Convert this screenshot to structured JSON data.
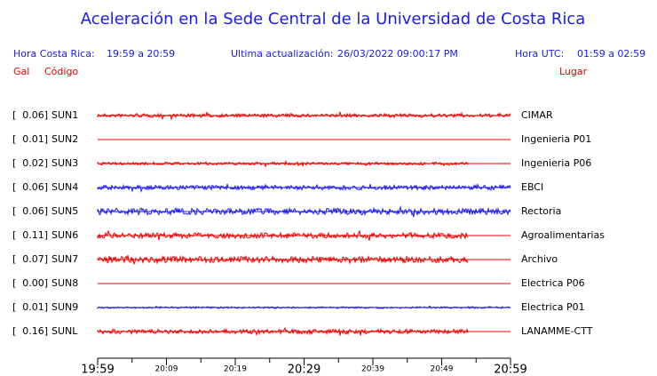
{
  "header": {
    "title": "Aceleración en la Sede Central de la Universidad de Costa Rica",
    "local_label": "Hora Costa Rica:",
    "local_range": "19:59 a 20:59",
    "update_label": "Ultima actualización:",
    "update_value": "26/03/2022 09:00:17 PM",
    "utc_label": "Hora UTC:",
    "utc_range": "01:59 a 02:59"
  },
  "columns": {
    "gal": "Gal",
    "code": "Código",
    "place": "Lugar"
  },
  "stations": [
    {
      "gal": "[  0.06]",
      "code": "SUN1",
      "place": "CIMAR",
      "color": "#ee0000"
    },
    {
      "gal": "[  0.01]",
      "code": "SUN2",
      "place": "Ingenieria P01",
      "color": "#ee0000"
    },
    {
      "gal": "[  0.02]",
      "code": "SUN3",
      "place": "Ingenieria P06",
      "color": "#ee0000"
    },
    {
      "gal": "[  0.06]",
      "code": "SUN4",
      "place": "EBCI",
      "color": "#1a1aee"
    },
    {
      "gal": "[  0.06]",
      "code": "SUN5",
      "place": "Rectoria",
      "color": "#1a1aee"
    },
    {
      "gal": "[  0.11]",
      "code": "SUN6",
      "place": "Agroalimentarias",
      "color": "#ee0000"
    },
    {
      "gal": "[  0.07]",
      "code": "SUN7",
      "place": "Archivo",
      "color": "#ee0000"
    },
    {
      "gal": "[  0.00]",
      "code": "SUN8",
      "place": "Electrica P06",
      "color": "#ee0000"
    },
    {
      "gal": "[  0.01]",
      "code": "SUN9",
      "place": "Electrica P01",
      "color": "#1a1aee"
    },
    {
      "gal": "[  0.16]",
      "code": "SUNL",
      "place": "LANAMME-CTT",
      "color": "#ee0000"
    }
  ],
  "time_axis": [
    "19:59",
    "20:09",
    "20:19",
    "20:29",
    "20:39",
    "20:49",
    "20:59"
  ]
}
